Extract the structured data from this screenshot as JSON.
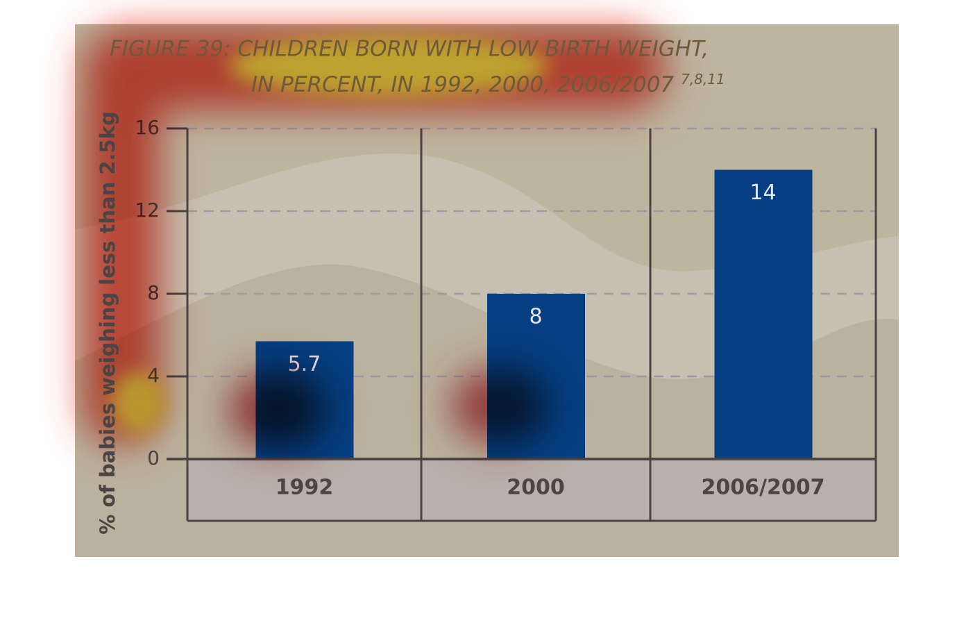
{
  "chart_data": {
    "type": "bar",
    "title": [
      "FIGURE 39: CHILDREN BORN WITH LOW BIRTH WEIGHT,",
      "IN PERCENT, IN 1992, 2000, 2006/2007"
    ],
    "title_superscript": "7,8,11",
    "y_label": "% of babies weighing less than 2.5kg",
    "categories": [
      "1992",
      "2000",
      "2006/2007"
    ],
    "values": [
      5.7,
      8,
      14
    ],
    "color": "#053f82",
    "ylim": [
      0,
      16
    ],
    "yticks": [
      0,
      4,
      8,
      12,
      16
    ],
    "grid": true
  }
}
